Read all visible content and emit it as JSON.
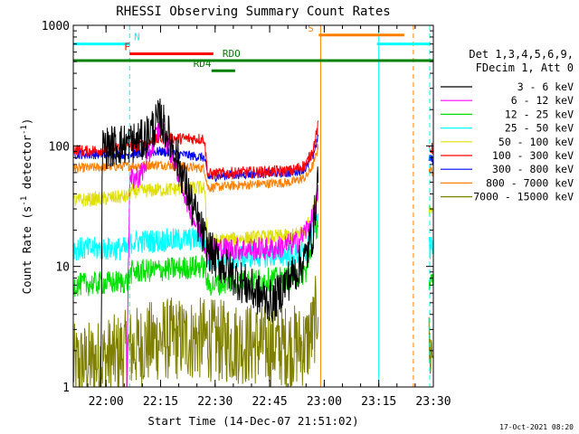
{
  "chart_data": {
    "type": "line",
    "title": "RHESSI Observing Summary Count Rates",
    "xlabel": "Start Time (14-Dec-07 21:51:02)",
    "ylabel_main": "Count Rate (s",
    "ylabel_sup1": "-1",
    "ylabel_mid": " detector",
    "ylabel_sup2": "-1",
    "ylabel_end": ")",
    "yscale": "log",
    "ylim": [
      1,
      1000
    ],
    "xlim_minutes": [
      0,
      99
    ],
    "x_ticks": [
      {
        "label": "22:00",
        "minute": 9
      },
      {
        "label": "22:15",
        "minute": 24
      },
      {
        "label": "22:30",
        "minute": 39
      },
      {
        "label": "22:45",
        "minute": 54
      },
      {
        "label": "23:00",
        "minute": 69
      },
      {
        "label": "23:15",
        "minute": 84
      },
      {
        "label": "23:30",
        "minute": 99
      }
    ],
    "y_ticks": [
      {
        "label": "1",
        "value": 1
      },
      {
        "label": "10",
        "value": 10
      },
      {
        "label": "100",
        "value": 100
      },
      {
        "label": "1000",
        "value": 1000
      }
    ],
    "legend_header": [
      "Det 1,3,4,5,6,9,",
      "FDecim 1, Att 0"
    ],
    "legend_position": "right",
    "series": [
      {
        "name": "3 - 6 keV",
        "color": "#000000"
      },
      {
        "name": "6 - 12 keV",
        "color": "#ff00ff"
      },
      {
        "name": "12 - 25 keV",
        "color": "#00e000"
      },
      {
        "name": "25 - 50 keV",
        "color": "#00ffff"
      },
      {
        "name": "50 - 100 keV",
        "color": "#e0e000"
      },
      {
        "name": "100 - 300 keV",
        "color": "#ff0000"
      },
      {
        "name": "300 - 800 keV",
        "color": "#0000ff"
      },
      {
        "name": "800 - 7000 keV",
        "color": "#ff8000"
      },
      {
        "name": "7000 - 15000 keV",
        "color": "#808000"
      }
    ],
    "flag_bars": [
      {
        "label": "N",
        "color": "#00ffff",
        "y_value": 700,
        "label_minute": 16.7,
        "segments": [
          [
            0,
            15.5
          ],
          [
            83.5,
            98
          ]
        ]
      },
      {
        "label": "F",
        "color": "#ff0000",
        "y_value": 580,
        "label_minute": 14,
        "segments": [
          [
            15.5,
            38.5
          ]
        ]
      },
      {
        "label": "S",
        "color": "#ff8000",
        "y_value": 830,
        "label_minute": 64.5,
        "segments": [
          [
            67.5,
            91
          ]
        ]
      },
      {
        "label": "RDO",
        "color": "#008000",
        "y_value": 510,
        "label_minute": 41,
        "segments": [
          [
            0,
            99
          ]
        ]
      },
      {
        "label": "RD4",
        "color": "#008000",
        "y_value": 420,
        "label_minute": 33,
        "segments": [
          [
            38,
            44.5
          ]
        ]
      }
    ],
    "vertical_markers": [
      {
        "minute": 15.5,
        "color": "#00ffff",
        "style": "dashed"
      },
      {
        "minute": 68,
        "color": "#ff8000",
        "style": "solid"
      },
      {
        "minute": 84,
        "color": "#00ffff",
        "style": "solid"
      },
      {
        "minute": 93.5,
        "color": "#ff8000",
        "style": "dashed"
      },
      {
        "minute": 98,
        "color": "#00ffff",
        "style": "dashed"
      }
    ],
    "data_gaps_minutes": [
      [
        68,
        97
      ]
    ]
  },
  "timestamp": "17-Oct-2021 08:20"
}
